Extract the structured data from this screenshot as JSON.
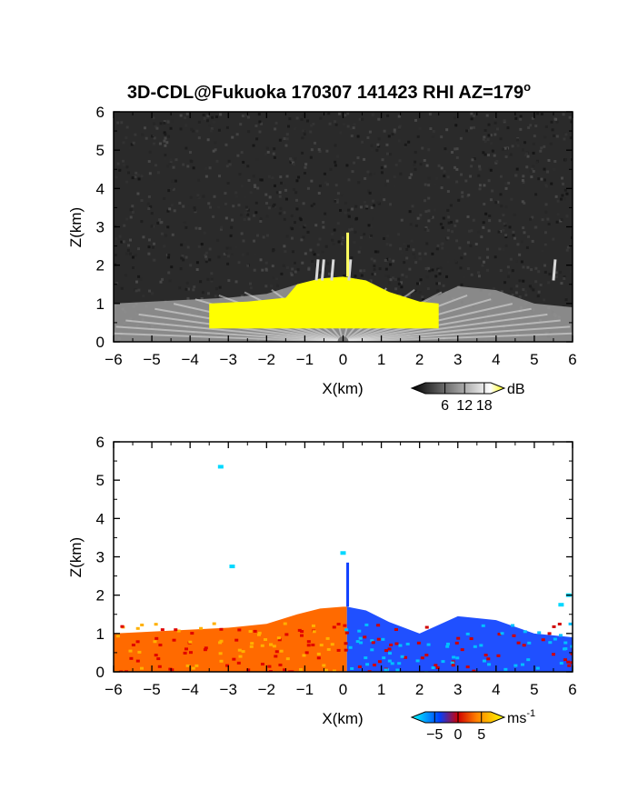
{
  "title": "3D-CDL@Fukuoka 170307 141423 RHI AZ=179",
  "title_sup": "o",
  "chart_data": [
    {
      "type": "heatmap",
      "panel": "top",
      "xlabel": "X(km)",
      "ylabel": "Z(km)",
      "xlim": [
        -6,
        6
      ],
      "ylim": [
        0,
        6
      ],
      "xticks": [
        "-6",
        "-5",
        "-4",
        "-3",
        "-2",
        "-1",
        "0",
        "1",
        "2",
        "3",
        "4",
        "5",
        "6"
      ],
      "yticks": [
        "0",
        "1",
        "2",
        "3",
        "4",
        "5",
        "6"
      ],
      "colorbar": {
        "unit": "dB",
        "ticks": [
          "6",
          "12",
          "18"
        ],
        "values": [
          6,
          12,
          18
        ],
        "range": [
          0,
          20
        ]
      },
      "background_color": "#2a2a2a",
      "signal_region": [
        [
          -6,
          1.0
        ],
        [
          -5,
          1.05
        ],
        [
          -4,
          1.1
        ],
        [
          -3,
          1.15
        ],
        [
          -2,
          1.25
        ],
        [
          -1.2,
          1.5
        ],
        [
          -0.6,
          1.65
        ],
        [
          0,
          1.7
        ],
        [
          0.6,
          1.6
        ],
        [
          1.2,
          1.3
        ],
        [
          2,
          1.0
        ],
        [
          3,
          1.45
        ],
        [
          4,
          1.35
        ],
        [
          5,
          1.0
        ],
        [
          6,
          0.9
        ]
      ],
      "saturated_region": [
        [
          -3.5,
          1.0
        ],
        [
          -2.5,
          1.05
        ],
        [
          -1.5,
          1.15
        ],
        [
          -1.2,
          1.5
        ],
        [
          -0.6,
          1.65
        ],
        [
          0,
          1.7
        ],
        [
          0.6,
          1.6
        ],
        [
          1.2,
          1.3
        ],
        [
          2,
          1.05
        ],
        [
          2.5,
          1.0
        ]
      ],
      "saturated_color": "#ffff00",
      "spikes_x": [
        -0.7,
        -0.55,
        -0.3,
        0.15,
        5.5
      ]
    },
    {
      "type": "heatmap",
      "panel": "bottom",
      "xlabel": "X(km)",
      "ylabel": "Z(km)",
      "xlim": [
        -6,
        6
      ],
      "ylim": [
        0,
        6
      ],
      "xticks": [
        "-6",
        "-5",
        "-4",
        "-3",
        "-2",
        "-1",
        "0",
        "1",
        "2",
        "3",
        "4",
        "5",
        "6"
      ],
      "yticks": [
        "0",
        "1",
        "2",
        "3",
        "4",
        "5",
        "6"
      ],
      "colorbar": {
        "unit": "ms",
        "unit_sup": "-1",
        "ticks": [
          "-5",
          "0",
          "5"
        ],
        "values": [
          -5,
          0,
          5
        ],
        "range": [
          -7,
          7
        ]
      },
      "velocity_region": [
        [
          -6,
          1.0
        ],
        [
          -5,
          1.05
        ],
        [
          -4,
          1.1
        ],
        [
          -3,
          1.15
        ],
        [
          -2,
          1.25
        ],
        [
          -1.2,
          1.5
        ],
        [
          -0.6,
          1.65
        ],
        [
          0,
          1.7
        ],
        [
          0.6,
          1.6
        ],
        [
          1.2,
          1.3
        ],
        [
          2,
          1.0
        ],
        [
          3,
          1.45
        ],
        [
          4,
          1.35
        ],
        [
          5,
          1.0
        ],
        [
          6,
          0.9
        ]
      ],
      "positive_x_range": [
        -6,
        0.1
      ],
      "negative_x_range": [
        0.1,
        6
      ],
      "isolated_points": [
        [
          -3.2,
          5.35
        ],
        [
          0.0,
          3.1
        ],
        [
          -2.9,
          2.75
        ],
        [
          5.7,
          1.75
        ],
        [
          5.9,
          2.0
        ]
      ]
    }
  ]
}
